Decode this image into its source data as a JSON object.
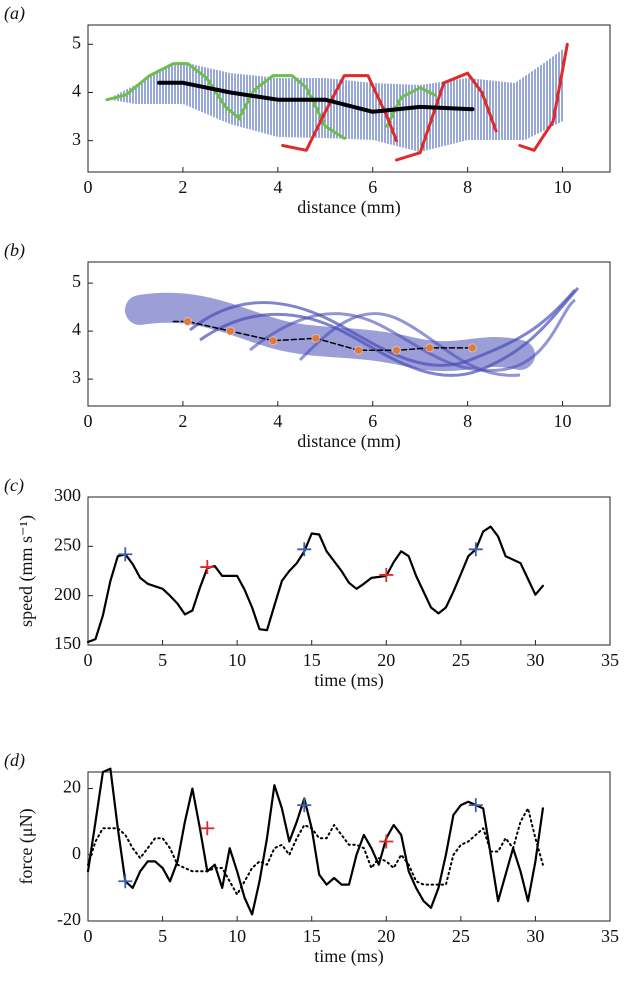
{
  "chart_data": [
    {
      "type": "line",
      "label": "(a)",
      "xlabel": "distance (mm)",
      "xlim": [
        0,
        11
      ],
      "ylim": [
        2.35,
        5.4
      ],
      "xticks": [
        0,
        2,
        4,
        6,
        8,
        10
      ],
      "yticks": [
        3,
        4,
        5
      ],
      "series": [
        {
          "color": "#6cbf4a",
          "style": "line",
          "width": 3,
          "x": [
            0.4,
            0.8,
            1.3,
            1.8,
            2.1,
            2.5,
            2.9,
            3.2
          ],
          "values": [
            3.85,
            3.95,
            4.35,
            4.6,
            4.6,
            4.3,
            3.7,
            3.45
          ]
        },
        {
          "color": "#6cbf4a",
          "style": "line",
          "width": 3,
          "x": [
            3.2,
            3.5,
            3.9,
            4.3,
            4.6,
            4.8,
            5.0,
            5.4
          ],
          "values": [
            3.5,
            4.05,
            4.35,
            4.35,
            4.1,
            3.7,
            3.3,
            3.05
          ]
        },
        {
          "color": "#6cbf4a",
          "style": "line",
          "width": 3,
          "x": [
            6.3,
            6.6,
            7.0,
            7.3
          ],
          "values": [
            3.3,
            3.9,
            4.1,
            3.95
          ]
        },
        {
          "color": "#e02a2a",
          "style": "line",
          "width": 3,
          "x": [
            4.1,
            4.6,
            5.0,
            5.4,
            5.9,
            6.3,
            6.5
          ],
          "values": [
            2.9,
            2.8,
            3.6,
            4.35,
            4.35,
            3.5,
            3.0
          ]
        },
        {
          "color": "#e02a2a",
          "style": "line",
          "width": 3,
          "x": [
            6.5,
            7.0,
            7.5,
            8.0,
            8.3,
            8.6
          ],
          "values": [
            2.6,
            2.75,
            4.2,
            4.4,
            4.0,
            3.2
          ]
        },
        {
          "color": "#e02a2a",
          "style": "line",
          "width": 3,
          "x": [
            9.1,
            9.4,
            9.8,
            10.1
          ],
          "values": [
            2.9,
            2.8,
            3.4,
            5.0
          ]
        },
        {
          "color": "#000000",
          "style": "line",
          "width": 4,
          "x": [
            1.5,
            2,
            3,
            4,
            5,
            6,
            7,
            8.1
          ],
          "values": [
            4.2,
            4.2,
            4.0,
            3.85,
            3.85,
            3.6,
            3.7,
            3.65
          ]
        }
      ]
    },
    {
      "type": "line",
      "label": "(b)",
      "xlabel": "distance (mm)",
      "xlim": [
        0,
        11
      ],
      "ylim": [
        2.44,
        5.44
      ],
      "xticks": [
        0,
        2,
        4,
        6,
        8,
        10
      ],
      "yticks": [
        3,
        4,
        5
      ],
      "series": [
        {
          "color": "#000000",
          "style": "dashed",
          "width": 1.5,
          "x": [
            1.8,
            2.1,
            3,
            3.9,
            4.8,
            5.7,
            6.5,
            7.2,
            8.1
          ],
          "values": [
            4.2,
            4.2,
            4.0,
            3.8,
            3.85,
            3.6,
            3.6,
            3.65,
            3.65
          ]
        },
        {
          "color": "#e07a3a",
          "style": "point",
          "x": [
            2.1,
            3,
            3.9,
            4.8,
            5.7,
            6.5,
            7.2,
            8.1
          ],
          "values": [
            4.2,
            4.0,
            3.8,
            3.85,
            3.6,
            3.6,
            3.65,
            3.65
          ]
        }
      ]
    },
    {
      "type": "line",
      "label": "(c)",
      "xlabel": "time (ms)",
      "ylabel": "speed (mm s⁻¹)",
      "xlim": [
        0,
        35
      ],
      "ylim": [
        150,
        300
      ],
      "xticks": [
        0,
        5,
        10,
        15,
        20,
        25,
        30,
        35
      ],
      "yticks": [
        150,
        200,
        250,
        300
      ],
      "series": [
        {
          "color": "#000000",
          "style": "line",
          "width": 2.2,
          "x": [
            0,
            0.5,
            1,
            1.5,
            2,
            2.5,
            3,
            3.5,
            4,
            5,
            5.5,
            6,
            6.5,
            7,
            7.5,
            8,
            8.5,
            9,
            10,
            10.5,
            11,
            11.5,
            12,
            12.5,
            13,
            13.5,
            14,
            14.5,
            15,
            15.5,
            16,
            17,
            17.5,
            18,
            18.5,
            19,
            20,
            20.5,
            21,
            21.5,
            22,
            23,
            23.5,
            24,
            24.5,
            25,
            25.5,
            26,
            26.5,
            27,
            27.5,
            28,
            29,
            30,
            30.5
          ],
          "values": [
            153,
            156,
            180,
            215,
            240,
            242,
            232,
            218,
            212,
            207,
            200,
            192,
            181,
            185,
            208,
            228,
            230,
            220,
            220,
            206,
            188,
            166,
            165,
            190,
            215,
            225,
            233,
            245,
            263,
            262,
            245,
            225,
            213,
            207,
            212,
            218,
            220,
            234,
            245,
            240,
            220,
            188,
            182,
            188,
            204,
            222,
            240,
            247,
            265,
            270,
            260,
            240,
            233,
            201,
            210
          ]
        },
        {
          "color": "#3a5fb0",
          "style": "plus",
          "x": [
            2.5,
            14.5,
            26
          ],
          "values": [
            242,
            247,
            247
          ]
        },
        {
          "color": "#e02a2a",
          "style": "plus",
          "x": [
            8,
            20
          ],
          "values": [
            229,
            221
          ]
        }
      ]
    },
    {
      "type": "line",
      "label": "(d)",
      "xlabel": "time (ms)",
      "ylabel": "force (μN)",
      "xlim": [
        0,
        35
      ],
      "ylim": [
        -20,
        25
      ],
      "xticks": [
        0,
        5,
        10,
        15,
        20,
        25,
        30,
        35
      ],
      "yticks": [
        -20,
        0,
        20
      ],
      "series": [
        {
          "color": "#000000",
          "style": "line",
          "width": 2.2,
          "x": [
            0,
            0.5,
            1,
            1.5,
            2,
            2.5,
            3,
            3.5,
            4,
            4.5,
            5,
            5.5,
            6,
            6.5,
            7,
            7.5,
            8,
            8.5,
            9,
            9.5,
            10,
            10.5,
            11,
            11.5,
            12,
            12.5,
            13,
            13.5,
            14,
            14.5,
            15,
            15.5,
            16,
            16.5,
            17,
            17.5,
            18,
            18.5,
            19,
            19.5,
            20,
            20.5,
            21,
            21.5,
            22,
            22.5,
            23,
            23.5,
            24,
            24.5,
            25,
            25.5,
            26,
            26.5,
            27,
            27.5,
            28,
            28.5,
            29,
            29.5,
            30,
            30.5
          ],
          "values": [
            -5,
            10,
            25,
            26,
            8,
            -8,
            -10,
            -5,
            -2,
            -2,
            -4,
            -8,
            -2,
            10,
            20,
            8,
            -5,
            -3,
            -10,
            2,
            -5,
            -13,
            -18,
            -8,
            5,
            21,
            14,
            4,
            10,
            17,
            8,
            -6,
            -9,
            -7,
            -9,
            -9,
            0,
            6,
            2,
            -3,
            5,
            9,
            6,
            -5,
            -10,
            -14,
            -16,
            -10,
            0,
            12,
            15,
            16,
            15,
            14,
            0,
            -14,
            -6,
            2,
            -5,
            -14,
            -2,
            14
          ]
        },
        {
          "color": "#000000",
          "style": "dotted",
          "width": 2,
          "x": [
            0,
            0.5,
            1,
            1.5,
            2,
            2.5,
            3,
            3.5,
            4,
            4.5,
            5,
            5.5,
            6,
            6.5,
            7,
            7.5,
            8,
            8.5,
            9,
            9.5,
            10,
            10.5,
            11,
            11.5,
            12,
            12.5,
            13,
            13.5,
            14,
            14.5,
            15,
            15.5,
            16,
            16.5,
            17,
            17.5,
            18,
            18.5,
            19,
            19.5,
            20,
            20.5,
            21,
            21.5,
            22,
            22.5,
            23,
            23.5,
            24,
            24.5,
            25,
            25.5,
            26,
            26.5,
            27,
            27.5,
            28,
            28.5,
            29,
            29.5,
            30,
            30.5
          ],
          "values": [
            -3,
            4,
            8,
            8,
            8,
            6,
            2,
            -1,
            2,
            5,
            5,
            2,
            -3,
            -4,
            -5,
            -5,
            -5,
            -4,
            -4,
            -8,
            -12,
            -8,
            -4,
            -2,
            -3,
            2,
            3,
            0,
            5,
            9,
            8,
            5,
            5,
            9,
            6,
            3,
            3,
            2,
            -4,
            -1,
            -2,
            -4,
            0,
            -3,
            -8,
            -9,
            -9,
            -9,
            -9,
            0,
            3,
            4,
            6,
            8,
            1,
            1,
            5,
            2,
            10,
            14,
            5,
            -3
          ]
        },
        {
          "color": "#3a5fb0",
          "style": "plus",
          "x": [
            2.5,
            14.5,
            26
          ],
          "values": [
            -8,
            15,
            15
          ]
        },
        {
          "color": "#e02a2a",
          "style": "plus",
          "x": [
            8,
            20
          ],
          "values": [
            8,
            4
          ]
        }
      ]
    }
  ]
}
